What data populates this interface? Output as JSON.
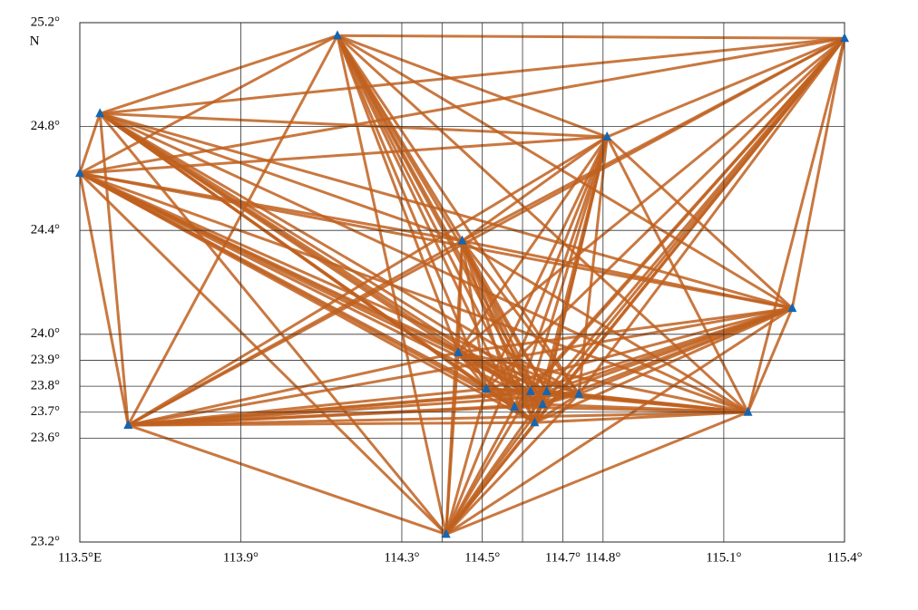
{
  "chart_data": {
    "type": "scatter",
    "y_unit": "N",
    "xlim": [
      113.5,
      115.4
    ],
    "ylim": [
      23.2,
      25.2
    ],
    "xticks": [
      {
        "value": 113.5,
        "label": "113.5°E"
      },
      {
        "value": 113.9,
        "label": "113.9°"
      },
      {
        "value": 114.3,
        "label": "114.3°"
      },
      {
        "value": 114.4,
        "label": null
      },
      {
        "value": 114.5,
        "label": "114.5°"
      },
      {
        "value": 114.6,
        "label": null
      },
      {
        "value": 114.7,
        "label": "114.7°"
      },
      {
        "value": 114.8,
        "label": "114.8°"
      },
      {
        "value": 115.1,
        "label": "115.1°"
      },
      {
        "value": 115.4,
        "label": "115.4°"
      }
    ],
    "yticks": [
      {
        "value": 23.2,
        "label": "23.2°"
      },
      {
        "value": 23.6,
        "label": "23.6°"
      },
      {
        "value": 23.7,
        "label": "23.7°"
      },
      {
        "value": 23.8,
        "label": "23.8°"
      },
      {
        "value": 23.9,
        "label": "23.9°"
      },
      {
        "value": 24.0,
        "label": "24.0°"
      },
      {
        "value": 24.4,
        "label": "24.4°"
      },
      {
        "value": 24.8,
        "label": "24.8°"
      },
      {
        "value": 25.2,
        "label": "25.2°"
      }
    ],
    "grid": true,
    "ray_color": "#c0601f",
    "series": [
      {
        "color": "#1565b0",
        "x": [
          114.14,
          115.4,
          113.55,
          113.5,
          114.81,
          114.45,
          115.27,
          114.44,
          114.51,
          114.62,
          114.66,
          114.74,
          114.58,
          114.65,
          114.63,
          115.16,
          113.62,
          114.41
        ],
        "values": [
          25.15,
          25.14,
          24.85,
          24.62,
          24.76,
          24.36,
          24.1,
          23.93,
          23.79,
          23.78,
          23.78,
          23.77,
          23.72,
          23.73,
          23.66,
          23.7,
          23.65,
          23.23
        ]
      }
    ]
  }
}
